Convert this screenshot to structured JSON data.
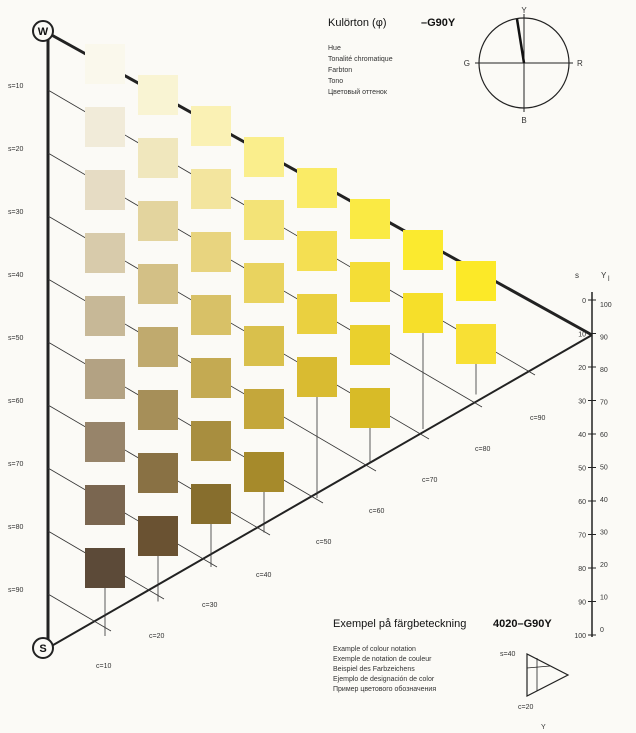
{
  "title": {
    "label": "Kulörton (φ)",
    "code": "–G90Y",
    "lines": [
      "Hue",
      "Tonalité chromatique",
      "Farbton",
      "Tono",
      "Цветовый оттенок"
    ]
  },
  "hue_circle": {
    "labels": {
      "top": "Y",
      "left": "G",
      "right": "R",
      "bottom": "B"
    }
  },
  "vertices": {
    "white": "W",
    "black": "S"
  },
  "s_labels": [
    "s=10",
    "s=20",
    "s=30",
    "s=40",
    "s=50",
    "s=60",
    "s=70",
    "s=80",
    "s=90"
  ],
  "c_labels": [
    "c=10",
    "c=20",
    "c=30",
    "c=40",
    "c=50",
    "c=60",
    "c=70",
    "c=80",
    "c=90"
  ],
  "scale": {
    "header_s": "s",
    "header_y": "Y",
    "header_y_sub": "l",
    "s_ticks": [
      "0",
      "10",
      "20",
      "30",
      "40",
      "50",
      "60",
      "70",
      "80",
      "90",
      "100"
    ],
    "y_ticks": [
      "100",
      "90",
      "80",
      "70",
      "60",
      "50",
      "40",
      "30",
      "20",
      "10",
      "0"
    ]
  },
  "example": {
    "title": "Exempel på färgbeteckning",
    "code": "4020–G90Y",
    "lines": [
      "Example of colour notation",
      "Exemple de notation de couleur",
      "Beispiel des Farbzeichens",
      "Ejemplo de designación de color",
      "Пример цветового обозначения"
    ],
    "triangle_s": "s=40",
    "triangle_c": "c=20",
    "triangle_y": "Y"
  },
  "colors": {
    "swatches": [
      [
        "#faf8ec",
        "#f1ebd9",
        "#e6dcc4",
        "#d8cbab",
        "#c7b897",
        "#b3a283",
        "#97846a",
        "#7a6650",
        "#5c4a38"
      ],
      [
        "#f9f4d3",
        "#f0e7bd",
        "#e3d49e",
        "#d3c086",
        "#c0aa6e",
        "#a68f59",
        "#897144",
        "#6a5232"
      ],
      [
        "#faf1b4",
        "#f3e59e",
        "#e8d47f",
        "#d8c167",
        "#c4aa52",
        "#a88e3f",
        "#876e2d"
      ],
      [
        "#faee8c",
        "#f3e377",
        "#e9d35f",
        "#d9c04c",
        "#c4a73b",
        "#a68a2b"
      ],
      [
        "#faeb66",
        "#f4df52",
        "#ead040",
        "#d9bb31"
      ],
      [
        "#faea44",
        "#f4dd36",
        "#ead02d",
        "#d8bb27"
      ],
      [
        "#fbea2f",
        "#f6df2a"
      ],
      [
        "#fce928",
        "#f8e034"
      ]
    ]
  }
}
